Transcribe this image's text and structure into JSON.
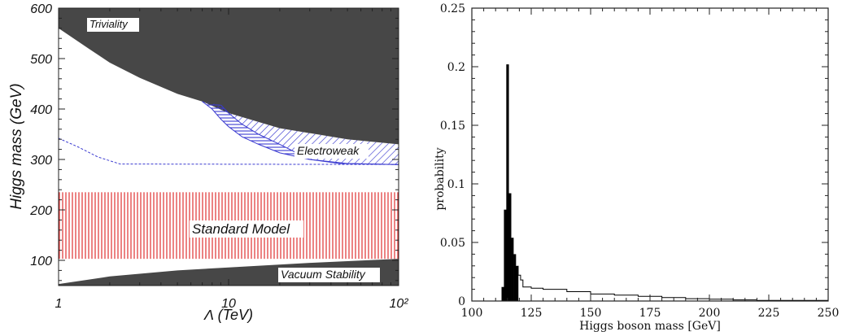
{
  "chart_data": [
    {
      "type": "area",
      "xlabel": "Λ (TeV)",
      "ylabel": "Higgs mass (GeV)",
      "x_scale": "log",
      "xlim": [
        1,
        100
      ],
      "ylim": [
        50,
        600
      ],
      "x_ticks": [
        {
          "v": 1,
          "label": "1"
        },
        {
          "v": 10,
          "label": "10"
        },
        {
          "v": 100,
          "label": "10²"
        }
      ],
      "y_ticks": [
        100,
        200,
        300,
        400,
        500,
        600
      ],
      "regions": [
        {
          "name": "Triviality",
          "color": "#474747",
          "boundary": [
            [
              1,
              560
            ],
            [
              1.5,
              520
            ],
            [
              2,
              492
            ],
            [
              3,
              462
            ],
            [
              5,
              430
            ],
            [
              7,
              415
            ],
            [
              10,
              392
            ],
            [
              20,
              362
            ],
            [
              50,
              340
            ],
            [
              100,
              330
            ]
          ],
          "side": "above"
        },
        {
          "name": "Electroweak",
          "color": "#3a3ad0",
          "outer": [
            [
              7,
              415
            ],
            [
              10,
              392
            ],
            [
              20,
              362
            ],
            [
              50,
              340
            ],
            [
              100,
              330
            ]
          ],
          "inner": [
            [
              9,
              408
            ],
            [
              10,
              392
            ],
            [
              12,
              370
            ],
            [
              15,
              350
            ],
            [
              20,
              330
            ],
            [
              30,
              300
            ],
            [
              50,
              292
            ],
            [
              100,
              290
            ]
          ],
          "lower": [
            [
              7,
              415
            ],
            [
              8,
              400
            ],
            [
              9,
              380
            ],
            [
              10,
              365
            ],
            [
              12,
              345
            ],
            [
              15,
              330
            ],
            [
              20,
              313
            ],
            [
              30,
              300
            ],
            [
              45,
              292
            ],
            [
              100,
              290
            ]
          ]
        },
        {
          "name": "Standard Model",
          "color": "#e03030",
          "y_range": [
            103,
            235
          ]
        },
        {
          "name": "Vacuum Stability",
          "color": "#474747",
          "boundary": [
            [
              1,
              53
            ],
            [
              2,
              68
            ],
            [
              5,
              80
            ],
            [
              10,
              86
            ],
            [
              30,
              95
            ],
            [
              100,
              103
            ]
          ],
          "side": "below"
        }
      ],
      "dashed_line": {
        "color": "#3a3ad0",
        "points": [
          [
            1,
            342
          ],
          [
            1.3,
            325
          ],
          [
            1.7,
            305
          ],
          [
            2.3,
            291
          ],
          [
            100,
            290
          ]
        ]
      }
    },
    {
      "type": "bar",
      "xlabel": "Higgs boson mass [GeV]",
      "ylabel": "probability",
      "xlim": [
        100,
        250
      ],
      "ylim": [
        0,
        0.25
      ],
      "x_ticks": [
        100,
        125,
        150,
        175,
        200,
        225,
        250
      ],
      "y_ticks": [
        "0",
        "0.05",
        "0.1",
        "0.15",
        "0.2",
        "0.25"
      ],
      "bins": [
        {
          "x0": 112.5,
          "x1": 113.5,
          "value": 0.012
        },
        {
          "x0": 113.5,
          "x1": 114.5,
          "value": 0.078
        },
        {
          "x0": 114.5,
          "x1": 115.5,
          "value": 0.202
        },
        {
          "x0": 115.5,
          "x1": 116.5,
          "value": 0.092
        },
        {
          "x0": 116.5,
          "x1": 117.5,
          "value": 0.054
        },
        {
          "x0": 117.5,
          "x1": 118.5,
          "value": 0.04
        },
        {
          "x0": 118.5,
          "x1": 119.5,
          "value": 0.03
        }
      ],
      "tail": [
        [
          119.5,
          0.022
        ],
        [
          120.5,
          0.018
        ],
        [
          121.5,
          0.012
        ],
        [
          125,
          0.011
        ],
        [
          130,
          0.01
        ],
        [
          140,
          0.008
        ],
        [
          150,
          0.006
        ],
        [
          160,
          0.005
        ],
        [
          170,
          0.004
        ],
        [
          180,
          0.003
        ],
        [
          190,
          0.002
        ],
        [
          200,
          0.0015
        ],
        [
          210,
          0.001
        ],
        [
          220,
          0.0005
        ],
        [
          250,
          0.0003
        ]
      ]
    }
  ]
}
